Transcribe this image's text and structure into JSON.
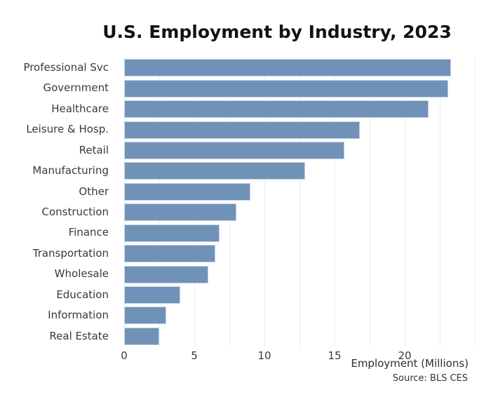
{
  "chart_data": {
    "type": "bar",
    "orientation": "horizontal",
    "title": "U.S. Employment by Industry, 2023",
    "categories": [
      "Professional Svc",
      "Government",
      "Healthcare",
      "Leisure & Hosp.",
      "Retail",
      "Manufacturing",
      "Other",
      "Construction",
      "Finance",
      "Transportation",
      "Wholesale",
      "Education",
      "Information",
      "Real Estate"
    ],
    "values": [
      23.3,
      23.1,
      21.7,
      16.8,
      15.7,
      12.9,
      9.0,
      8.0,
      6.8,
      6.5,
      6.0,
      4.0,
      3.0,
      2.5
    ],
    "xlabel": "Employment (Millions)",
    "source": "Source: BLS CES",
    "xticks": [
      0,
      5,
      10,
      15,
      20
    ],
    "xlim": [
      0,
      25.65
    ],
    "gridline_step": 2.5,
    "gridline_max": 25,
    "grid": true,
    "legend": "none",
    "bar_color": "#7092b8",
    "bar_edge_color": "#c6d3e4",
    "grid_color": "#ececec",
    "text_color": "#3a3a3a",
    "title_color": "#121212"
  }
}
